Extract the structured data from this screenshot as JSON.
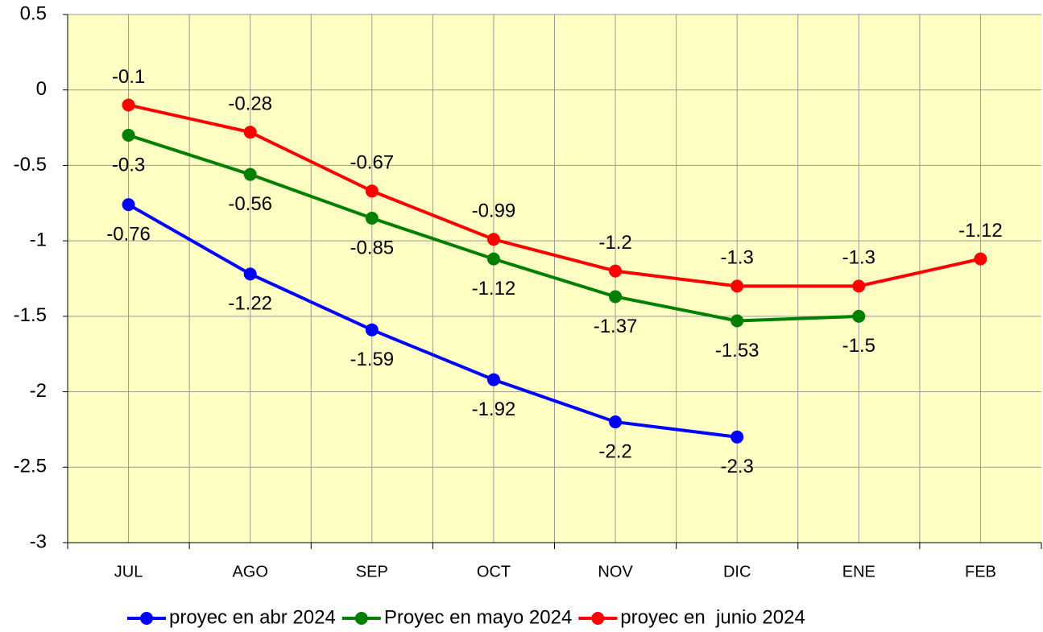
{
  "chart_data": {
    "type": "line",
    "categories": [
      "JUL",
      "AGO",
      "SEP",
      "OCT",
      "NOV",
      "DIC",
      "ENE",
      "FEB"
    ],
    "series": [
      {
        "name": "proyec en abr 2024",
        "color": "#0000ff",
        "values": [
          -0.76,
          -1.22,
          -1.59,
          -1.92,
          -2.2,
          -2.3,
          null,
          null
        ]
      },
      {
        "name": "Proyec en mayo 2024",
        "color": "#008000",
        "values": [
          -0.3,
          -0.56,
          -0.85,
          -1.12,
          -1.37,
          -1.53,
          -1.5,
          null
        ]
      },
      {
        "name": "proyec en  junio 2024",
        "color": "#ff0000",
        "values": [
          -0.1,
          -0.28,
          -0.67,
          -0.99,
          -1.2,
          -1.3,
          -1.3,
          -1.12
        ]
      }
    ],
    "ylim": [
      -3,
      0.5
    ],
    "yticks": [
      0.5,
      0,
      -0.5,
      -1,
      -1.5,
      -2,
      -2.5,
      -3
    ],
    "grid": true,
    "legend": "bottom",
    "background": "#ffffc4"
  }
}
